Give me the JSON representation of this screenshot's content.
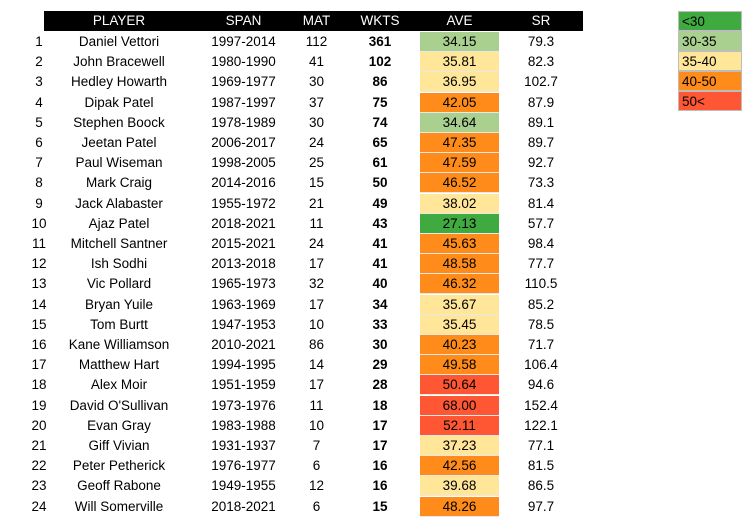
{
  "headers": {
    "player": "PLAYER",
    "span": "SPAN",
    "mat": "MAT",
    "wkts": "WKTS",
    "ave": "AVE",
    "sr": "SR"
  },
  "colors": {
    "lt30": "#3faa3f",
    "r30_35": "#a9d08e",
    "r35_40": "#ffe699",
    "r40_50": "#ff8c1a",
    "gt50": "#ff5733"
  },
  "legend": [
    {
      "label": "<30",
      "color": "#3faa3f"
    },
    {
      "label": "30-35",
      "color": "#a9d08e"
    },
    {
      "label": "35-40",
      "color": "#ffe699"
    },
    {
      "label": "40-50",
      "color": "#ff8c1a"
    },
    {
      "label": "50<",
      "color": "#ff5733"
    }
  ],
  "rows": [
    {
      "rank": "1",
      "player": "Daniel Vettori",
      "span": "1997-2014",
      "mat": "112",
      "wkts": "361",
      "ave": "34.15",
      "sr": "79.3",
      "color": "#a9d08e"
    },
    {
      "rank": "2",
      "player": "John Bracewell",
      "span": "1980-1990",
      "mat": "41",
      "wkts": "102",
      "ave": "35.81",
      "sr": "82.3",
      "color": "#ffe699"
    },
    {
      "rank": "3",
      "player": "Hedley Howarth",
      "span": "1969-1977",
      "mat": "30",
      "wkts": "86",
      "ave": "36.95",
      "sr": "102.7",
      "color": "#ffe699"
    },
    {
      "rank": "4",
      "player": "Dipak Patel",
      "span": "1987-1997",
      "mat": "37",
      "wkts": "75",
      "ave": "42.05",
      "sr": "87.9",
      "color": "#ff8c1a"
    },
    {
      "rank": "5",
      "player": "Stephen Boock",
      "span": "1978-1989",
      "mat": "30",
      "wkts": "74",
      "ave": "34.64",
      "sr": "89.1",
      "color": "#a9d08e"
    },
    {
      "rank": "6",
      "player": "Jeetan Patel",
      "span": "2006-2017",
      "mat": "24",
      "wkts": "65",
      "ave": "47.35",
      "sr": "89.7",
      "color": "#ff8c1a"
    },
    {
      "rank": "7",
      "player": "Paul Wiseman",
      "span": "1998-2005",
      "mat": "25",
      "wkts": "61",
      "ave": "47.59",
      "sr": "92.7",
      "color": "#ff8c1a"
    },
    {
      "rank": "8",
      "player": "Mark Craig",
      "span": "2014-2016",
      "mat": "15",
      "wkts": "50",
      "ave": "46.52",
      "sr": "73.3",
      "color": "#ff8c1a"
    },
    {
      "rank": "9",
      "player": "Jack Alabaster",
      "span": "1955-1972",
      "mat": "21",
      "wkts": "49",
      "ave": "38.02",
      "sr": "81.4",
      "color": "#ffe699"
    },
    {
      "rank": "10",
      "player": "Ajaz Patel",
      "span": "2018-2021",
      "mat": "11",
      "wkts": "43",
      "ave": "27.13",
      "sr": "57.7",
      "color": "#3faa3f"
    },
    {
      "rank": "11",
      "player": "Mitchell Santner",
      "span": "2015-2021",
      "mat": "24",
      "wkts": "41",
      "ave": "45.63",
      "sr": "98.4",
      "color": "#ff8c1a"
    },
    {
      "rank": "12",
      "player": "Ish Sodhi",
      "span": "2013-2018",
      "mat": "17",
      "wkts": "41",
      "ave": "48.58",
      "sr": "77.7",
      "color": "#ff8c1a"
    },
    {
      "rank": "13",
      "player": "Vic Pollard",
      "span": "1965-1973",
      "mat": "32",
      "wkts": "40",
      "ave": "46.32",
      "sr": "110.5",
      "color": "#ff8c1a"
    },
    {
      "rank": "14",
      "player": "Bryan Yuile",
      "span": "1963-1969",
      "mat": "17",
      "wkts": "34",
      "ave": "35.67",
      "sr": "85.2",
      "color": "#ffe699"
    },
    {
      "rank": "15",
      "player": "Tom Burtt",
      "span": "1947-1953",
      "mat": "10",
      "wkts": "33",
      "ave": "35.45",
      "sr": "78.5",
      "color": "#ffe699"
    },
    {
      "rank": "16",
      "player": "Kane Williamson",
      "span": "2010-2021",
      "mat": "86",
      "wkts": "30",
      "ave": "40.23",
      "sr": "71.7",
      "color": "#ff8c1a"
    },
    {
      "rank": "17",
      "player": "Matthew Hart",
      "span": "1994-1995",
      "mat": "14",
      "wkts": "29",
      "ave": "49.58",
      "sr": "106.4",
      "color": "#ff8c1a"
    },
    {
      "rank": "18",
      "player": "Alex Moir",
      "span": "1951-1959",
      "mat": "17",
      "wkts": "28",
      "ave": "50.64",
      "sr": "94.6",
      "color": "#ff5733"
    },
    {
      "rank": "19",
      "player": "David O'Sullivan",
      "span": "1973-1976",
      "mat": "11",
      "wkts": "18",
      "ave": "68.00",
      "sr": "152.4",
      "color": "#ff5733"
    },
    {
      "rank": "20",
      "player": "Evan Gray",
      "span": "1983-1988",
      "mat": "10",
      "wkts": "17",
      "ave": "52.11",
      "sr": "122.1",
      "color": "#ff5733"
    },
    {
      "rank": "21",
      "player": "Giff Vivian",
      "span": "1931-1937",
      "mat": "7",
      "wkts": "17",
      "ave": "37.23",
      "sr": "77.1",
      "color": "#ffe699"
    },
    {
      "rank": "22",
      "player": "Peter Petherick",
      "span": "1976-1977",
      "mat": "6",
      "wkts": "16",
      "ave": "42.56",
      "sr": "81.5",
      "color": "#ff8c1a"
    },
    {
      "rank": "23",
      "player": "Geoff Rabone",
      "span": "1949-1955",
      "mat": "12",
      "wkts": "16",
      "ave": "39.68",
      "sr": "86.5",
      "color": "#ffe699"
    },
    {
      "rank": "24",
      "player": "Will Somerville",
      "span": "2018-2021",
      "mat": "6",
      "wkts": "15",
      "ave": "48.26",
      "sr": "97.7",
      "color": "#ff8c1a"
    }
  ]
}
